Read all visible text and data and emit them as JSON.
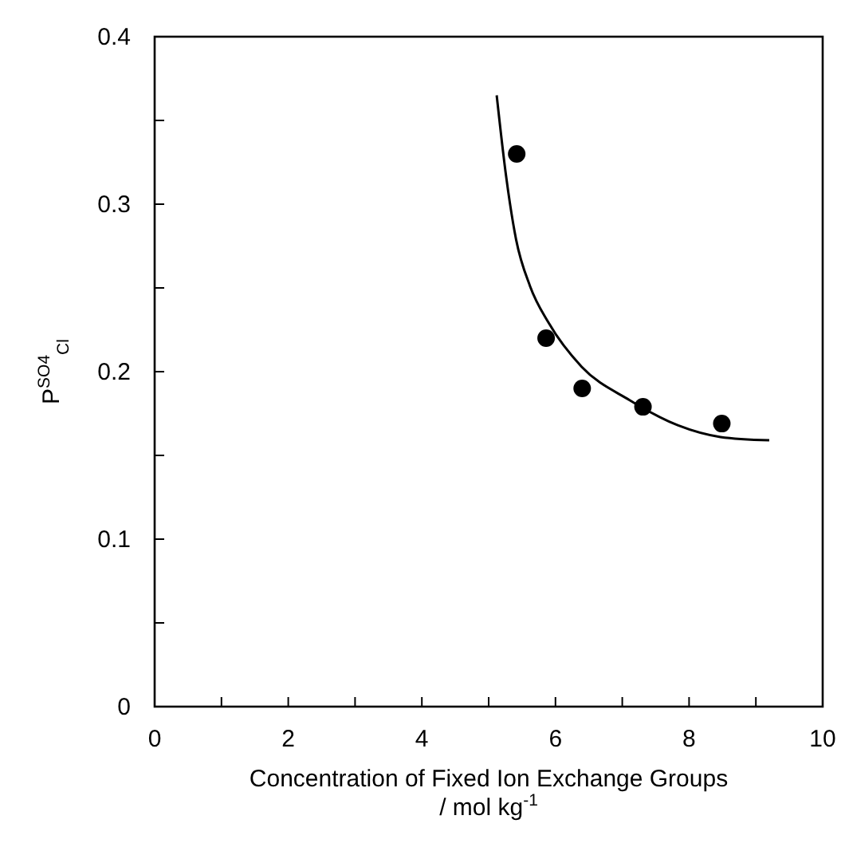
{
  "chart_data": {
    "type": "scatter",
    "xlabel": "Concentration of Fixed Ion Exchange Groups / mol kg$^{-1}$",
    "ylabel": "P$^{SO4}$$_{Cl}$",
    "xlim": [
      0,
      10
    ],
    "ylim": [
      0,
      0.4
    ],
    "xticks": [
      0,
      {
        "value": 1,
        "label": null
      },
      2,
      {
        "value": 3,
        "label": null
      },
      4,
      {
        "value": 5,
        "label": null
      },
      6,
      {
        "value": 7,
        "label": null
      },
      8,
      {
        "value": 9,
        "label": null
      },
      10
    ],
    "yticks": [
      0,
      {
        "value": 0.05,
        "label": null
      },
      0.1,
      {
        "value": 0.15,
        "label": null
      },
      0.2,
      {
        "value": 0.25,
        "label": null
      },
      0.3,
      {
        "value": 0.35,
        "label": null
      },
      0.4
    ],
    "grid": false,
    "series": [
      {
        "color": "#000000",
        "marker": "circle",
        "x": [
          5.42,
          5.86,
          6.4,
          7.31,
          8.49
        ],
        "values": [
          0.33,
          0.22,
          0.19,
          0.179,
          0.169
        ]
      },
      {
        "type": "line",
        "color": "#000000",
        "marker": "none",
        "line_style": "solid",
        "x": [
          5.12,
          5.26,
          5.41,
          5.62,
          5.9,
          6.39,
          7.11,
          7.83,
          8.47,
          9.2
        ],
        "values": [
          0.365,
          0.317,
          0.279,
          0.251,
          0.229,
          0.203,
          0.183,
          0.168,
          0.161,
          0.159
        ]
      }
    ]
  }
}
